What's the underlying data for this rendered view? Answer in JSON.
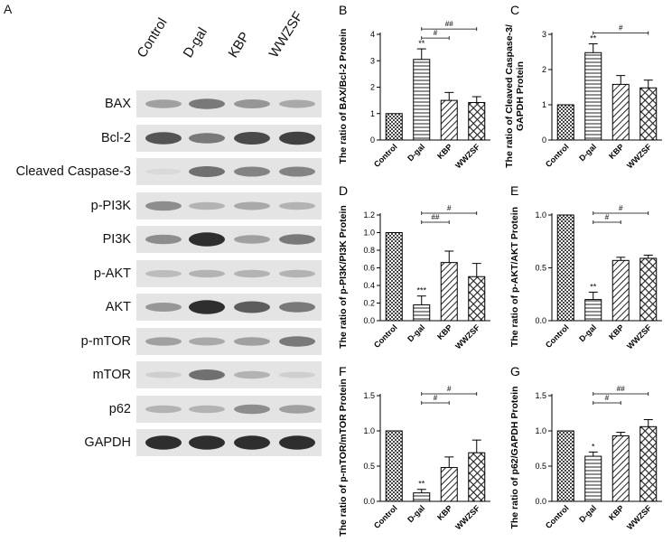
{
  "figure": {
    "panel_a_letter": "A",
    "lanes": [
      "Control",
      "D-gal",
      "KBP",
      "WWZSF"
    ],
    "blot_rows": [
      {
        "label": "BAX",
        "intensity": [
          0.35,
          0.55,
          0.4,
          0.3
        ]
      },
      {
        "label": "Bcl-2",
        "intensity": [
          0.75,
          0.55,
          0.8,
          0.85
        ]
      },
      {
        "label": "Cleaved Caspase-3",
        "intensity": [
          0.05,
          0.6,
          0.5,
          0.5
        ]
      },
      {
        "label": "p-PI3K",
        "intensity": [
          0.45,
          0.25,
          0.3,
          0.25
        ]
      },
      {
        "label": "PI3K",
        "intensity": [
          0.45,
          0.95,
          0.35,
          0.55
        ]
      },
      {
        "label": "p-AKT",
        "intensity": [
          0.2,
          0.25,
          0.25,
          0.25
        ]
      },
      {
        "label": "AKT",
        "intensity": [
          0.4,
          0.95,
          0.7,
          0.55
        ]
      },
      {
        "label": "p-mTOR",
        "intensity": [
          0.35,
          0.3,
          0.35,
          0.55
        ]
      },
      {
        "label": "mTOR",
        "intensity": [
          0.1,
          0.6,
          0.25,
          0.1
        ]
      },
      {
        "label": "p62",
        "intensity": [
          0.25,
          0.25,
          0.45,
          0.35
        ]
      },
      {
        "label": "GAPDH",
        "intensity": [
          0.95,
          0.95,
          0.95,
          0.95
        ]
      }
    ]
  },
  "chart_data": [
    {
      "type": "bar",
      "panel": "B",
      "ylabel": "The ratio of BAX/Bcl-2 Protein",
      "categories": [
        "Control",
        "D-gal",
        "KBP",
        "WWZSF"
      ],
      "values": [
        1.0,
        3.05,
        1.5,
        1.42
      ],
      "errors": [
        0,
        0.4,
        0.3,
        0.22
      ],
      "ylim": [
        0,
        4
      ],
      "yticks": [
        0,
        1,
        2,
        3,
        4
      ],
      "stars": [
        "",
        "**",
        "",
        ""
      ],
      "brackets": [
        {
          "from": 1,
          "to": 2,
          "label": "#"
        },
        {
          "from": 1,
          "to": 3,
          "label": "##"
        }
      ]
    },
    {
      "type": "bar",
      "panel": "C",
      "ylabel": "The ratio of Cleaved Caspase-3/ GAPDH Protein",
      "categories": [
        "Control",
        "D-gal",
        "KBP",
        "WWZSF"
      ],
      "values": [
        1.0,
        2.48,
        1.58,
        1.48
      ],
      "errors": [
        0,
        0.25,
        0.25,
        0.22
      ],
      "ylim": [
        0,
        3
      ],
      "yticks": [
        0,
        1,
        2,
        3
      ],
      "stars": [
        "",
        "**",
        "",
        ""
      ],
      "brackets": [
        {
          "from": 1,
          "to": 3,
          "label": "#"
        }
      ]
    },
    {
      "type": "bar",
      "panel": "D",
      "ylabel": "The ratio of p-PI3K/PI3K Protein",
      "categories": [
        "Control",
        "D-gal",
        "KBP",
        "WWZSF"
      ],
      "values": [
        1.0,
        0.18,
        0.66,
        0.5
      ],
      "errors": [
        0,
        0.1,
        0.13,
        0.15
      ],
      "ylim": [
        0,
        1.2
      ],
      "yticks": [
        0.0,
        0.2,
        0.4,
        0.6,
        0.8,
        1.0,
        1.2
      ],
      "stars": [
        "",
        "***",
        "",
        ""
      ],
      "brackets": [
        {
          "from": 1,
          "to": 2,
          "label": "##"
        },
        {
          "from": 1,
          "to": 3,
          "label": "#"
        }
      ]
    },
    {
      "type": "bar",
      "panel": "E",
      "ylabel": "The ratio of p-AKT/AKT Protein",
      "categories": [
        "Control",
        "D-gal",
        "KBP",
        "WWZSF"
      ],
      "values": [
        1.0,
        0.2,
        0.57,
        0.59
      ],
      "errors": [
        0,
        0.07,
        0.03,
        0.03
      ],
      "ylim": [
        0,
        1.0
      ],
      "yticks": [
        0.0,
        0.5,
        1.0
      ],
      "stars": [
        "",
        "**",
        "",
        ""
      ],
      "brackets": [
        {
          "from": 1,
          "to": 2,
          "label": "#"
        },
        {
          "from": 1,
          "to": 3,
          "label": "#"
        }
      ]
    },
    {
      "type": "bar",
      "panel": "F",
      "ylabel": "The ratio of p-mTOR/mTOR Protein",
      "categories": [
        "Control",
        "D-gal",
        "KBP",
        "WWZSF"
      ],
      "values": [
        1.0,
        0.12,
        0.48,
        0.69
      ],
      "errors": [
        0,
        0.05,
        0.15,
        0.18
      ],
      "ylim": [
        0,
        1.5
      ],
      "yticks": [
        0.0,
        0.5,
        1.0,
        1.5
      ],
      "stars": [
        "",
        "**",
        "",
        ""
      ],
      "brackets": [
        {
          "from": 1,
          "to": 2,
          "label": "#"
        },
        {
          "from": 1,
          "to": 3,
          "label": "#"
        }
      ]
    },
    {
      "type": "bar",
      "panel": "G",
      "ylabel": "The ratio of p62/GAPDH Protein",
      "categories": [
        "Control",
        "D-gal",
        "KBP",
        "WWZSF"
      ],
      "values": [
        1.0,
        0.64,
        0.93,
        1.06
      ],
      "errors": [
        0,
        0.06,
        0.05,
        0.1
      ],
      "ylim": [
        0,
        1.5
      ],
      "yticks": [
        0.0,
        0.5,
        1.0,
        1.5
      ],
      "stars": [
        "",
        "*",
        "",
        ""
      ],
      "brackets": [
        {
          "from": 1,
          "to": 2,
          "label": "#"
        },
        {
          "from": 1,
          "to": 3,
          "label": "##"
        }
      ]
    }
  ]
}
